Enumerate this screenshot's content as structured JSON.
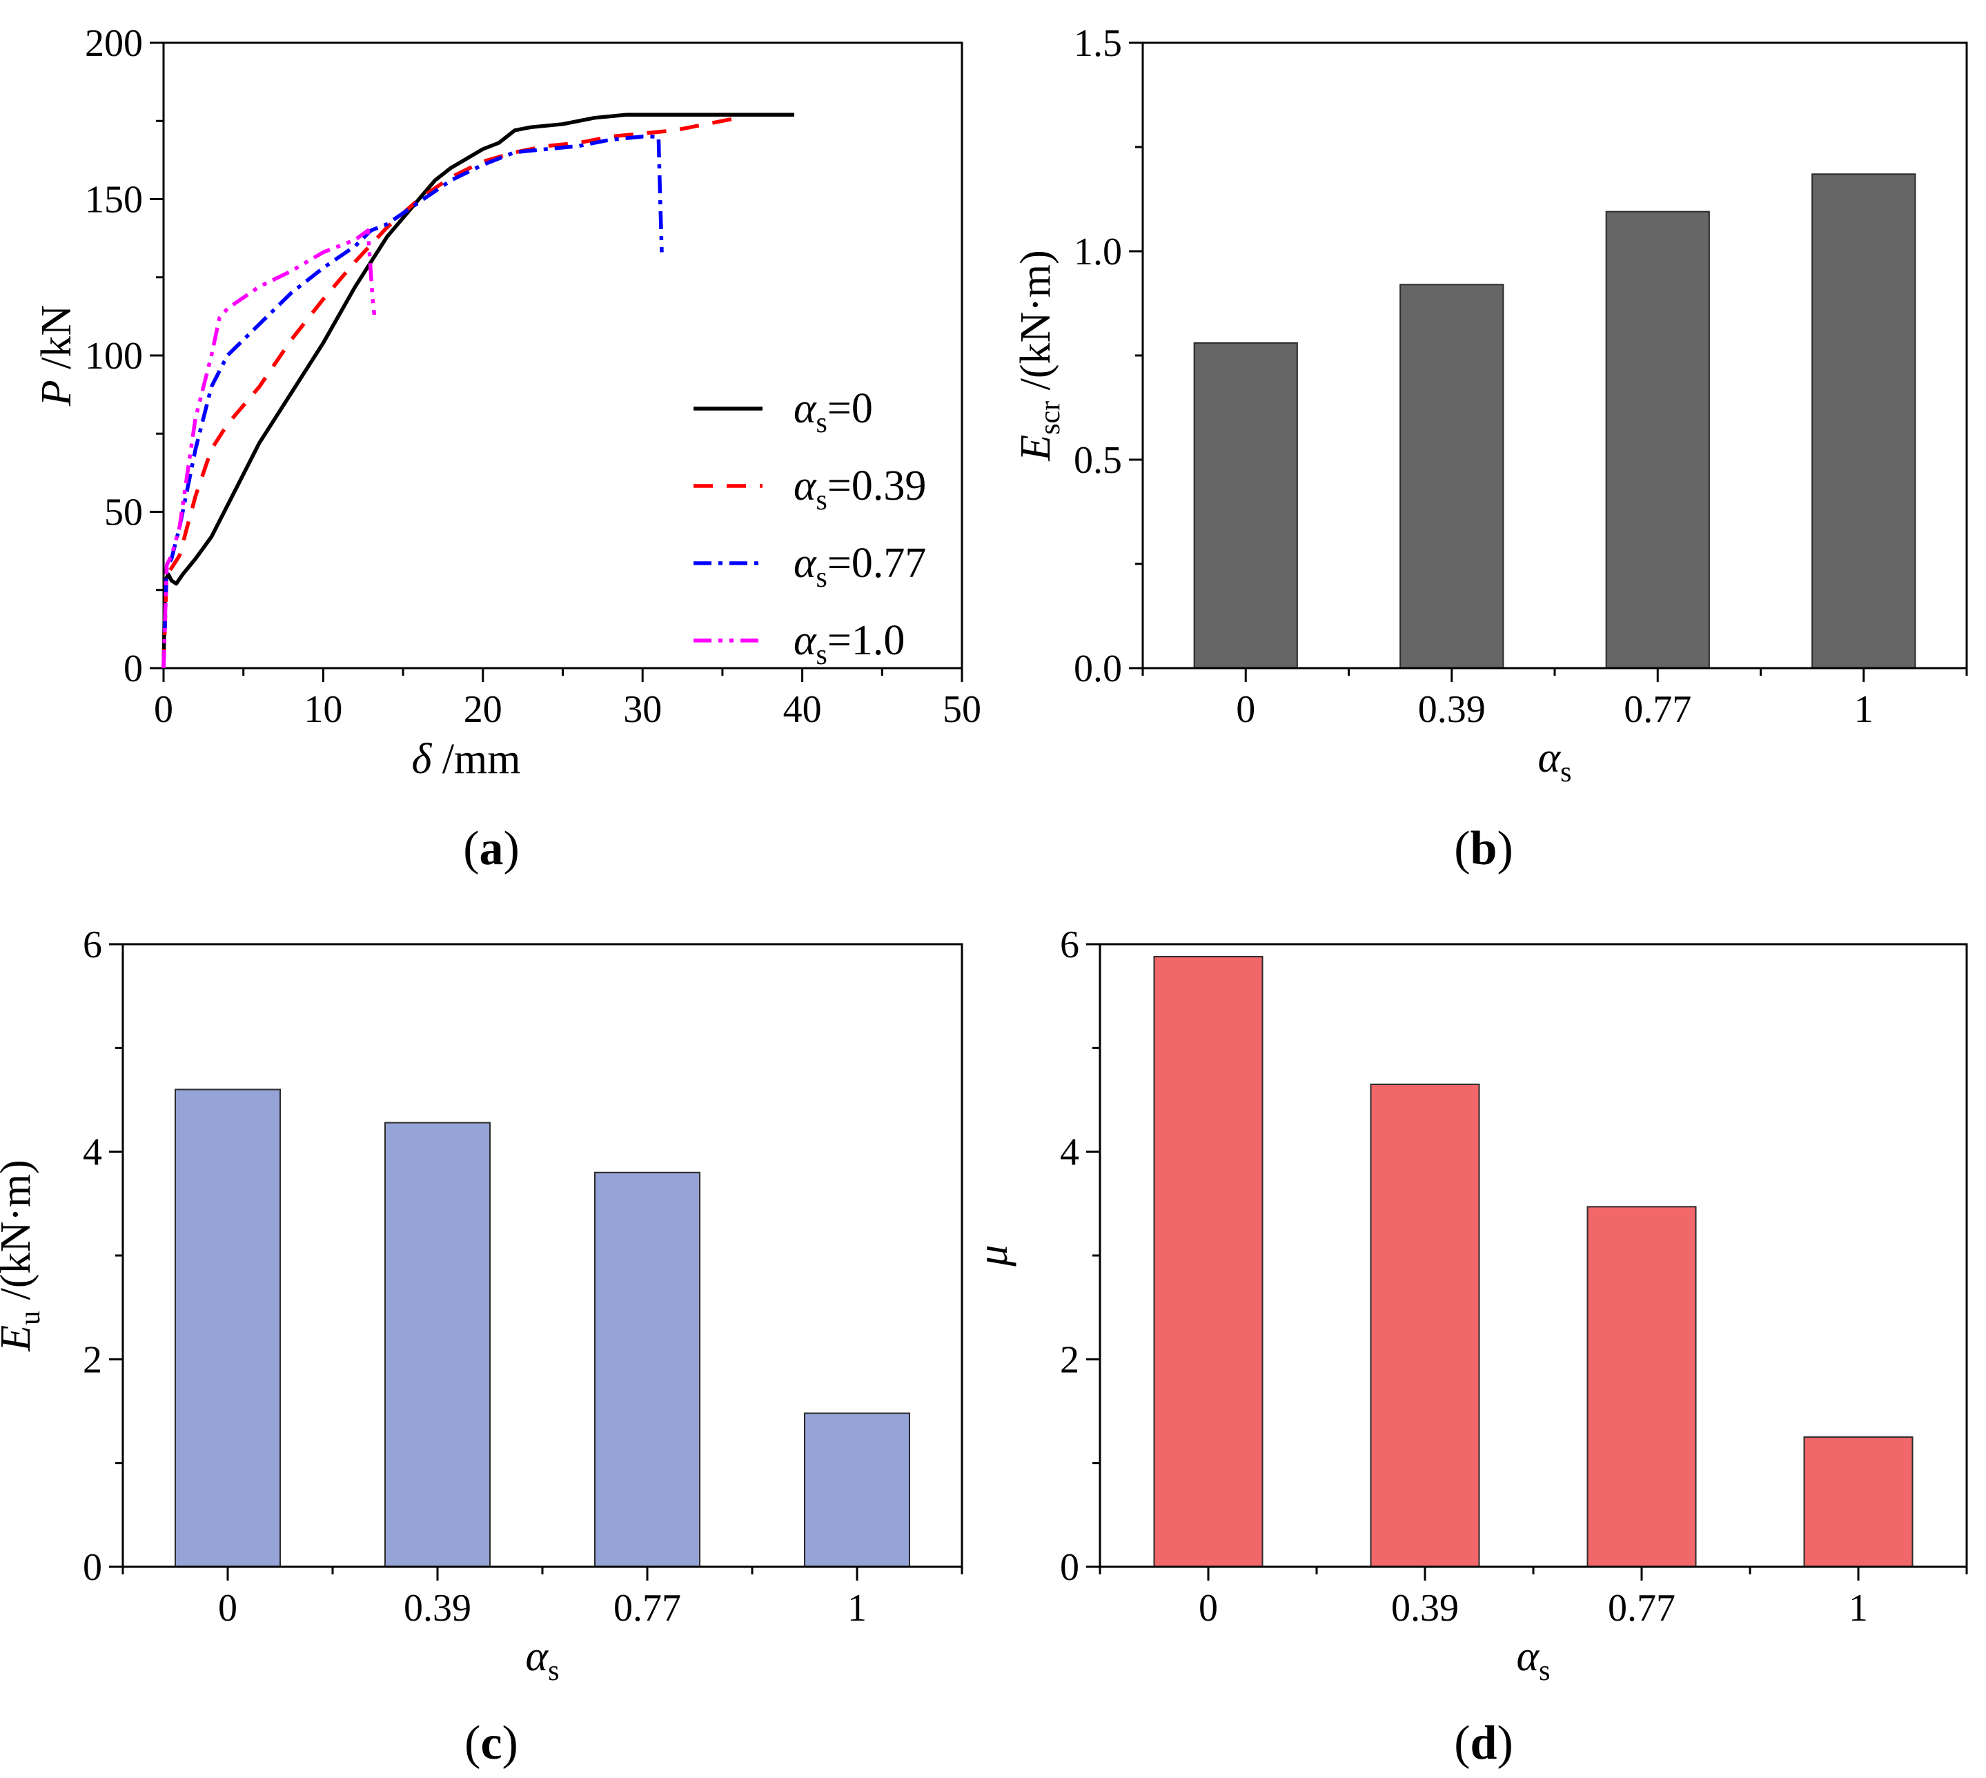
{
  "panel_labels": {
    "a": {
      "open": "(",
      "letter": "a",
      "close": ")"
    },
    "b": {
      "open": "(",
      "letter": "b",
      "close": ")"
    },
    "c": {
      "open": "(",
      "letter": "c",
      "close": ")"
    },
    "d": {
      "open": "(",
      "letter": "d",
      "close": ")"
    }
  },
  "chart_data": [
    {
      "id": "a",
      "type": "line",
      "xlabel": {
        "sym": "δ",
        "unit": " /mm"
      },
      "ylabel": {
        "sym": "P",
        "unit": " /kN"
      },
      "xlim": [
        0,
        50
      ],
      "ylim": [
        0,
        200
      ],
      "xticks": [
        0,
        10,
        20,
        30,
        40,
        50
      ],
      "yticks": [
        0,
        50,
        100,
        150,
        200
      ],
      "xtick_labels": [
        "0",
        "10",
        "20",
        "30",
        "40",
        "50"
      ],
      "ytick_labels": [
        "0",
        "50",
        "100",
        "150",
        "200"
      ],
      "legend_position": "lower-right",
      "series": [
        {
          "name": "αs=0",
          "sym": "α",
          "sub": "s",
          "suffix": "=0",
          "color": "#000000",
          "dash": "solid",
          "x": [
            0,
            0.1,
            0.3,
            0.5,
            0.8,
            1.2,
            2,
            3,
            4,
            5,
            6,
            8,
            10,
            12,
            14,
            16,
            17,
            18,
            19,
            20,
            21,
            22,
            23,
            25,
            27,
            29,
            31,
            33,
            35,
            37,
            39.5
          ],
          "y": [
            0,
            28,
            30,
            28,
            27,
            30,
            35,
            42,
            52,
            62,
            72,
            88,
            104,
            122,
            138,
            150,
            156,
            160,
            163,
            166,
            168,
            172,
            173,
            174,
            176,
            177,
            177,
            177,
            177,
            177,
            177
          ]
        },
        {
          "name": "αs=0.39",
          "sym": "α",
          "sub": "s",
          "suffix": "=0.39",
          "color": "#ff0000",
          "dash": "28,20",
          "x": [
            0,
            0.2,
            0.5,
            1,
            2,
            3,
            4,
            6,
            8,
            10,
            12,
            14,
            16,
            18,
            20,
            22,
            24,
            26,
            28,
            30,
            32,
            34,
            36
          ],
          "y": [
            0,
            30,
            32,
            36,
            55,
            70,
            78,
            90,
            105,
            118,
            130,
            141,
            150,
            157,
            162,
            165,
            167,
            168,
            170,
            171,
            172,
            174,
            176
          ]
        },
        {
          "name": "αs=0.77",
          "sym": "α",
          "sub": "s",
          "suffix": "=0.77",
          "color": "#0000ff",
          "dash": "26,10,6,10",
          "x": [
            0,
            0.2,
            0.5,
            1,
            2,
            3,
            4,
            6,
            8,
            10,
            12,
            13,
            14,
            16,
            18,
            20,
            22,
            24,
            26,
            28,
            30,
            31,
            31.1,
            31.2
          ],
          "y": [
            0,
            32,
            35,
            45,
            70,
            90,
            100,
            110,
            120,
            128,
            135,
            140,
            142,
            149,
            156,
            161,
            165,
            166,
            167,
            169,
            170,
            170,
            150,
            133
          ]
        },
        {
          "name": "αs=1.0",
          "sym": "α",
          "sub": "s",
          "suffix": "=1.0",
          "color": "#ff00ff",
          "dash": "26,10,6,10,6,10",
          "x": [
            0,
            0.2,
            0.5,
            1,
            2,
            3,
            3.5,
            4,
            6,
            8,
            10,
            12,
            12.8,
            13,
            13.1,
            13.2
          ],
          "y": [
            0,
            33,
            36,
            45,
            80,
            100,
            112,
            115,
            122,
            127,
            133,
            137,
            140,
            125,
            118,
            113
          ]
        }
      ]
    },
    {
      "id": "b",
      "type": "bar",
      "categories": [
        "0",
        "0.39",
        "0.77",
        "1"
      ],
      "values": [
        0.78,
        0.92,
        1.095,
        1.185
      ],
      "ylim": [
        0,
        1.5
      ],
      "yticks": [
        0,
        0.5,
        1.0,
        1.5
      ],
      "ytick_labels": [
        "0.0",
        "0.5",
        "1.0",
        "1.5"
      ],
      "xlabel": {
        "sym": "α",
        "sub": "s"
      },
      "ylabel": {
        "sym": "E",
        "sub": "scr",
        "unit": " /(kN·m)"
      },
      "color": "#666666"
    },
    {
      "id": "c",
      "type": "bar",
      "categories": [
        "0",
        "0.39",
        "0.77",
        "1"
      ],
      "values": [
        4.6,
        4.28,
        3.8,
        1.48
      ],
      "ylim": [
        0,
        6
      ],
      "yticks": [
        0,
        2,
        4,
        6
      ],
      "ytick_labels": [
        "0",
        "2",
        "4",
        "6"
      ],
      "xlabel": {
        "sym": "α",
        "sub": "s"
      },
      "ylabel": {
        "sym": "E",
        "sub": "u",
        "unit": " /(kN·m)"
      },
      "color": "#95a3d6"
    },
    {
      "id": "d",
      "type": "bar",
      "categories": [
        "0",
        "0.39",
        "0.77",
        "1"
      ],
      "values": [
        5.88,
        4.65,
        3.47,
        1.25
      ],
      "ylim": [
        0,
        6
      ],
      "yticks": [
        0,
        2,
        4,
        6
      ],
      "ytick_labels": [
        "0",
        "2",
        "4",
        "6"
      ],
      "xlabel": {
        "sym": "α",
        "sub": "s"
      },
      "ylabel": {
        "sym": "μ",
        "sub": "",
        "unit": ""
      },
      "color": "#f2676a"
    }
  ]
}
